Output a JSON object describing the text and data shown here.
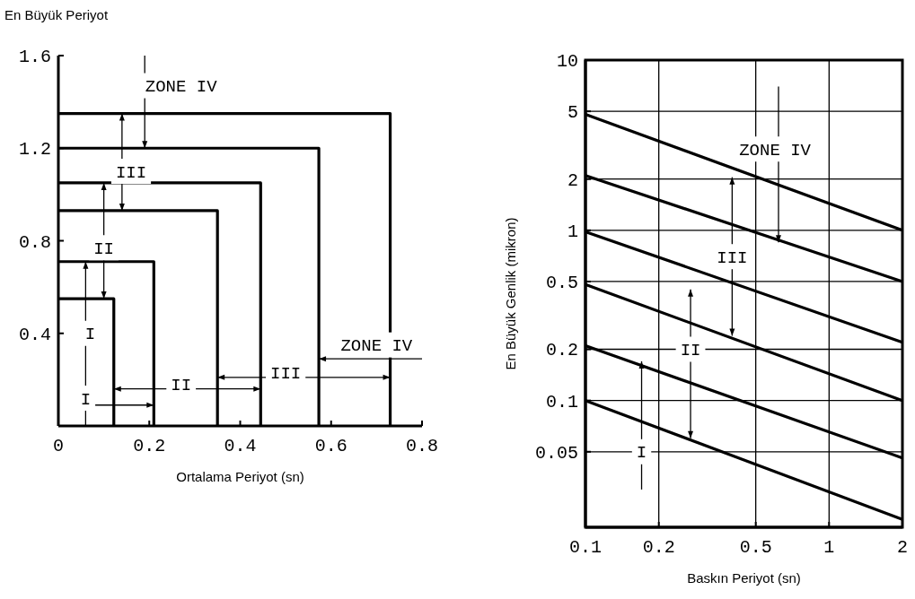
{
  "chart_data": [
    {
      "type": "line",
      "ylabel": "En Büyük Periyot",
      "xlabel": "Ortalama Periyot (sn)",
      "xlim": [
        0,
        0.8
      ],
      "ylim": [
        0,
        1.6
      ],
      "xticks": [
        0,
        0.2,
        0.4,
        0.6,
        0.8
      ],
      "yticks": [
        0.4,
        0.8,
        1.2,
        1.6
      ],
      "grid": false,
      "marker": "none",
      "line_style": "solid",
      "series": [
        {
          "color": "#000000",
          "x": [
            0,
            0.73,
            0.73
          ],
          "values": [
            1.35,
            1.35,
            0
          ]
        },
        {
          "color": "#000000",
          "x": [
            0,
            0.573,
            0.573
          ],
          "values": [
            1.2,
            1.2,
            0
          ]
        },
        {
          "color": "#000000",
          "x": [
            0,
            0.445,
            0.445
          ],
          "values": [
            1.05,
            1.05,
            0
          ]
        },
        {
          "color": "#000000",
          "x": [
            0,
            0.35,
            0.35
          ],
          "values": [
            0.93,
            0.93,
            0
          ]
        },
        {
          "color": "#000000",
          "x": [
            0,
            0.21,
            0.21
          ],
          "values": [
            0.71,
            0.71,
            0
          ]
        },
        {
          "color": "#000000",
          "x": [
            0,
            0.122,
            0.122
          ],
          "values": [
            0.55,
            0.55,
            0
          ]
        }
      ],
      "annotations": [
        {
          "text": "ZONE IV",
          "x": 0.19,
          "y": 1.2
        },
        {
          "text": "III",
          "x": 0.14,
          "y": 0.93
        },
        "II",
        "I",
        "I",
        "II",
        "III",
        "ZONE IV"
      ]
    },
    {
      "type": "line",
      "ylabel": "En Büyük Genlik (mikron)",
      "xlabel": "Baskın Periyot (sn)",
      "log": "xy",
      "xlim": [
        0.1,
        2
      ],
      "ylim": [
        0.018,
        10
      ],
      "xticks": [
        0.1,
        0.2,
        0.5,
        1,
        2
      ],
      "yticks": [
        0.05,
        0.1,
        0.2,
        0.5,
        1,
        2,
        5,
        10
      ],
      "grid": true,
      "marker": "none",
      "line_style": "solid",
      "series": [
        {
          "color": "#000000",
          "x": [
            0.1,
            2
          ],
          "values": [
            4.8,
            1
          ]
        },
        {
          "color": "#000000",
          "x": [
            0.1,
            2
          ],
          "values": [
            2.1,
            0.5
          ]
        },
        {
          "color": "#000000",
          "x": [
            0.1,
            2
          ],
          "values": [
            0.98,
            0.22
          ]
        },
        {
          "color": "#000000",
          "x": [
            0.1,
            2
          ],
          "values": [
            0.48,
            0.1
          ]
        },
        {
          "color": "#000000",
          "x": [
            0.1,
            2
          ],
          "values": [
            0.21,
            0.046
          ]
        },
        {
          "color": "#000000",
          "x": [
            0.1,
            2
          ],
          "values": [
            0.1,
            0.02
          ]
        }
      ],
      "annotations": [
        "ZONE IV",
        "III",
        "II",
        "I"
      ]
    }
  ]
}
